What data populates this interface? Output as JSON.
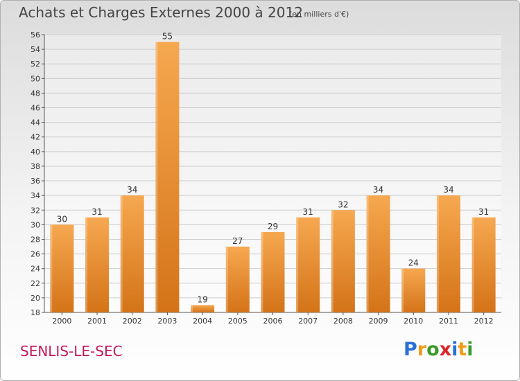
{
  "title": "Achats et Charges Externes 2000 à 2012",
  "unit": "(en milliers d'€)",
  "commune": "SENLIS-LE-SEC",
  "logo": {
    "letters": [
      "P",
      "r",
      "o",
      "x",
      "i",
      "t",
      "i"
    ],
    "colors": [
      "#2a6fd6",
      "#f29a1a",
      "#3a9a2a",
      "#d8262b",
      "#2a6fd6",
      "#f29a1a",
      "#3a9a2a"
    ]
  },
  "colors": {
    "bar_light": "#f6a850",
    "bar_dark": "#d47318",
    "grid": "#cccccc",
    "commune": "#c2185b"
  },
  "chart_data": {
    "type": "bar",
    "categories": [
      "2000",
      "2001",
      "2002",
      "2003",
      "2004",
      "2005",
      "2006",
      "2007",
      "2008",
      "2009",
      "2010",
      "2011",
      "2012"
    ],
    "values": [
      30,
      31,
      34,
      55,
      19,
      27,
      29,
      31,
      32,
      34,
      24,
      34,
      31
    ],
    "value_labels": [
      "30",
      "31",
      "34",
      "55",
      "19",
      "27",
      "29",
      "31",
      "32",
      "34",
      "24",
      "34",
      "31"
    ],
    "title": "Achats et Charges Externes 2000 à 2012",
    "ylim": [
      18,
      56
    ],
    "yticks": [
      "18",
      "20",
      "22",
      "24",
      "26",
      "28",
      "30",
      "32",
      "34",
      "36",
      "38",
      "40",
      "42",
      "44",
      "46",
      "48",
      "50",
      "52",
      "54",
      "56"
    ],
    "grid": true
  }
}
